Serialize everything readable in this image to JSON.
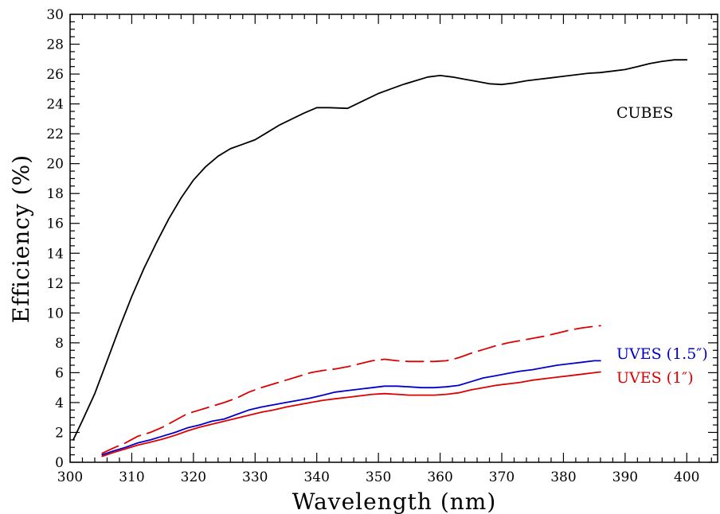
{
  "chart_data": {
    "type": "line",
    "xlabel": "Wavelength (nm)",
    "ylabel": "Efficiency (%)",
    "xlim": [
      300,
      405
    ],
    "ylim": [
      0,
      30
    ],
    "xticks": [
      300,
      310,
      320,
      330,
      340,
      350,
      360,
      370,
      380,
      390,
      400
    ],
    "yticks": [
      0,
      2,
      4,
      6,
      8,
      10,
      12,
      14,
      16,
      18,
      20,
      22,
      24,
      26,
      28,
      30
    ],
    "grid": false,
    "annotations": [
      {
        "text": "CUBES",
        "color": "#000000",
        "series": "cubes"
      },
      {
        "text": "UVES (1.5″)",
        "color": "#0000cc",
        "series": "uves15"
      },
      {
        "text": "UVES (1″)",
        "color": "#dd0000",
        "series": "uves1"
      }
    ],
    "series": [
      {
        "key": "cubes",
        "color": "#000000",
        "style": "solid",
        "x": [
          300.5,
          302,
          304,
          306,
          308,
          310,
          312,
          314,
          316,
          318,
          320,
          322,
          324,
          326,
          328,
          330,
          332,
          334,
          336,
          338,
          340,
          342,
          345,
          347,
          350,
          352,
          354,
          356,
          358,
          360,
          362,
          364,
          366,
          368,
          370,
          372,
          374,
          376,
          378,
          380,
          382,
          384,
          386,
          388,
          390,
          392,
          394,
          396,
          398,
          400
        ],
        "y": [
          1.5,
          2.8,
          4.6,
          6.8,
          9.0,
          11.1,
          13.0,
          14.7,
          16.3,
          17.7,
          18.9,
          19.8,
          20.5,
          21.0,
          21.3,
          21.6,
          22.1,
          22.6,
          23.0,
          23.4,
          23.75,
          23.75,
          23.7,
          24.1,
          24.7,
          25.0,
          25.3,
          25.55,
          25.8,
          25.9,
          25.8,
          25.65,
          25.5,
          25.35,
          25.3,
          25.4,
          25.55,
          25.65,
          25.75,
          25.85,
          25.95,
          26.05,
          26.1,
          26.2,
          26.3,
          26.5,
          26.7,
          26.85,
          26.95,
          26.95
        ]
      },
      {
        "key": "uves15_dashed",
        "color": "#dd0000",
        "style": "dashed",
        "x": [
          305.2,
          307,
          309,
          311,
          313,
          315,
          317,
          319,
          321,
          323,
          325,
          327,
          329,
          331,
          333,
          335,
          337,
          339,
          341,
          343,
          345,
          347,
          349,
          351,
          353,
          355,
          357,
          359,
          361,
          363,
          365,
          367,
          369,
          371,
          373,
          375,
          377,
          379,
          381,
          383,
          385,
          386
        ],
        "y": [
          0.6,
          0.95,
          1.3,
          1.75,
          2.0,
          2.35,
          2.8,
          3.25,
          3.5,
          3.75,
          4.0,
          4.3,
          4.7,
          5.0,
          5.25,
          5.5,
          5.75,
          6.0,
          6.15,
          6.25,
          6.4,
          6.6,
          6.8,
          6.9,
          6.8,
          6.75,
          6.75,
          6.75,
          6.8,
          7.0,
          7.3,
          7.55,
          7.8,
          8.0,
          8.15,
          8.3,
          8.45,
          8.65,
          8.85,
          9.0,
          9.1,
          9.15
        ]
      },
      {
        "key": "uves15",
        "color": "#0000cc",
        "style": "solid",
        "x": [
          305.2,
          307,
          309,
          311,
          313,
          315,
          317,
          319,
          321,
          323,
          325,
          327,
          329,
          331,
          333,
          335,
          337,
          339,
          341,
          343,
          345,
          347,
          349,
          351,
          353,
          355,
          357,
          359,
          361,
          363,
          365,
          367,
          369,
          371,
          373,
          375,
          377,
          379,
          381,
          383,
          385,
          386
        ],
        "y": [
          0.5,
          0.75,
          1.0,
          1.3,
          1.5,
          1.75,
          2.0,
          2.3,
          2.5,
          2.75,
          2.9,
          3.2,
          3.5,
          3.7,
          3.85,
          4.0,
          4.15,
          4.3,
          4.5,
          4.7,
          4.8,
          4.9,
          5.0,
          5.1,
          5.1,
          5.05,
          5.0,
          5.0,
          5.05,
          5.15,
          5.4,
          5.65,
          5.8,
          5.95,
          6.1,
          6.2,
          6.35,
          6.5,
          6.6,
          6.7,
          6.8,
          6.8
        ]
      },
      {
        "key": "uves1",
        "color": "#dd0000",
        "style": "solid",
        "x": [
          305.2,
          307,
          309,
          311,
          313,
          315,
          317,
          319,
          321,
          323,
          325,
          327,
          329,
          331,
          333,
          335,
          337,
          339,
          341,
          343,
          345,
          347,
          349,
          351,
          353,
          355,
          357,
          359,
          361,
          363,
          365,
          367,
          369,
          371,
          373,
          375,
          377,
          379,
          381,
          383,
          385,
          386
        ],
        "y": [
          0.4,
          0.65,
          0.9,
          1.15,
          1.35,
          1.55,
          1.8,
          2.1,
          2.35,
          2.55,
          2.75,
          2.95,
          3.15,
          3.35,
          3.5,
          3.7,
          3.85,
          4.0,
          4.15,
          4.25,
          4.35,
          4.45,
          4.55,
          4.6,
          4.55,
          4.5,
          4.5,
          4.5,
          4.55,
          4.65,
          4.85,
          5.0,
          5.15,
          5.25,
          5.35,
          5.5,
          5.6,
          5.7,
          5.8,
          5.9,
          6.0,
          6.05
        ]
      }
    ]
  }
}
